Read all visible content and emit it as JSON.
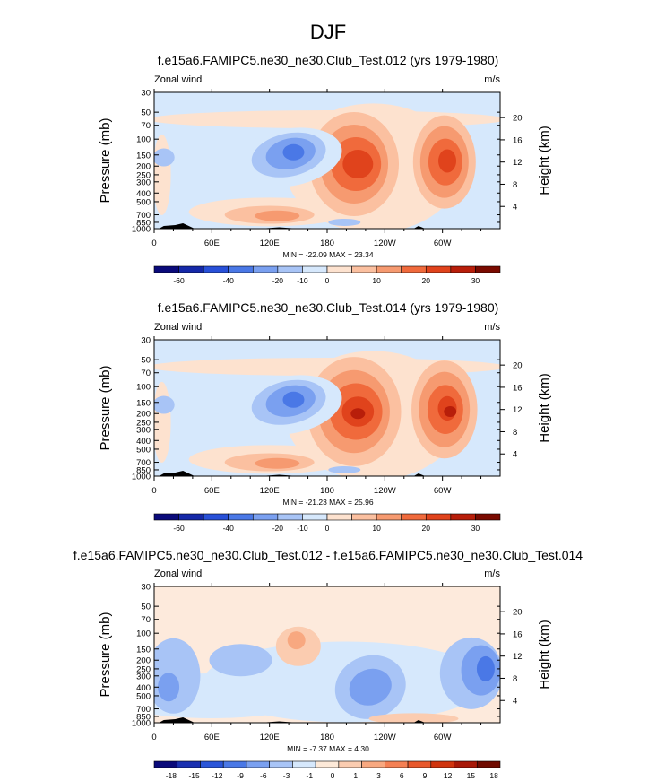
{
  "page_title": "DJF",
  "chart_data": [
    {
      "type": "heatmap",
      "title": "f.e15a6.FAMIPC5.ne30_ne30.Club_Test.012 (yrs 1979-1980)",
      "left_label": "Zonal wind",
      "right_label": "m/s",
      "ylabel": "Pressure (mb)",
      "y2label": "Height (km)",
      "y_ticks": [
        "30",
        "50",
        "70",
        "100",
        "150",
        "200",
        "250",
        "300",
        "400",
        "500",
        "700",
        "850",
        "1000"
      ],
      "y2_ticks": [
        "20",
        "16",
        "12",
        "8",
        "4"
      ],
      "x_ticks": [
        "0",
        "60E",
        "120E",
        "180",
        "120W",
        "60W"
      ],
      "stats": "MIN = -22.09  MAX = 23.34",
      "colorbar_labels": [
        "-60",
        "-40",
        "-20",
        "-10",
        "0",
        "10",
        "20",
        "30"
      ],
      "features": [
        {
          "lon": 145,
          "p": 150,
          "value": -22
        },
        {
          "lon": 210,
          "p": 200,
          "value": 23
        },
        {
          "lon": 300,
          "p": 180,
          "value": 23
        },
        {
          "lon": 125,
          "p": 700,
          "value": 8
        }
      ]
    },
    {
      "type": "heatmap",
      "title": "f.e15a6.FAMIPC5.ne30_ne30.Club_Test.014 (yrs 1979-1980)",
      "left_label": "Zonal wind",
      "right_label": "m/s",
      "ylabel": "Pressure (mb)",
      "y2label": "Height (km)",
      "y_ticks": [
        "30",
        "50",
        "70",
        "100",
        "150",
        "200",
        "250",
        "300",
        "400",
        "500",
        "700",
        "850",
        "1000"
      ],
      "y2_ticks": [
        "20",
        "16",
        "12",
        "8",
        "4"
      ],
      "x_ticks": [
        "0",
        "60E",
        "120E",
        "180",
        "120W",
        "60W"
      ],
      "stats": "MIN = -21.23  MAX = 25.96",
      "colorbar_labels": [
        "-60",
        "-40",
        "-20",
        "-10",
        "0",
        "10",
        "20",
        "30"
      ],
      "features": [
        {
          "lon": 140,
          "p": 140,
          "value": -21
        },
        {
          "lon": 215,
          "p": 200,
          "value": 26
        },
        {
          "lon": 305,
          "p": 190,
          "value": 26
        },
        {
          "lon": 140,
          "p": 700,
          "value": 8
        }
      ]
    },
    {
      "type": "heatmap",
      "title": "f.e15a6.FAMIPC5.ne30_ne30.Club_Test.012 - f.e15a6.FAMIPC5.ne30_ne30.Club_Test.014",
      "left_label": "Zonal wind",
      "right_label": "m/s",
      "ylabel": "Pressure (mb)",
      "y2label": "Height (km)",
      "y_ticks": [
        "30",
        "50",
        "70",
        "100",
        "150",
        "200",
        "250",
        "300",
        "400",
        "500",
        "700",
        "850",
        "1000"
      ],
      "y2_ticks": [
        "20",
        "16",
        "12",
        "8",
        "4"
      ],
      "x_ticks": [
        "0",
        "60E",
        "120E",
        "180",
        "120W",
        "60W"
      ],
      "stats": "MIN = -7.37  MAX =  4.30",
      "colorbar_labels": [
        "-18",
        "-15",
        "-12",
        "-9",
        "-6",
        "-3",
        "-1",
        "0",
        "1",
        "3",
        "6",
        "9",
        "12",
        "15",
        "18"
      ],
      "features": [
        {
          "lon": 345,
          "p": 250,
          "value": -7
        },
        {
          "lon": 220,
          "p": 400,
          "value": -5
        },
        {
          "lon": 150,
          "p": 150,
          "value": 4
        },
        {
          "lon": 15,
          "p": 350,
          "value": -4
        }
      ]
    }
  ]
}
